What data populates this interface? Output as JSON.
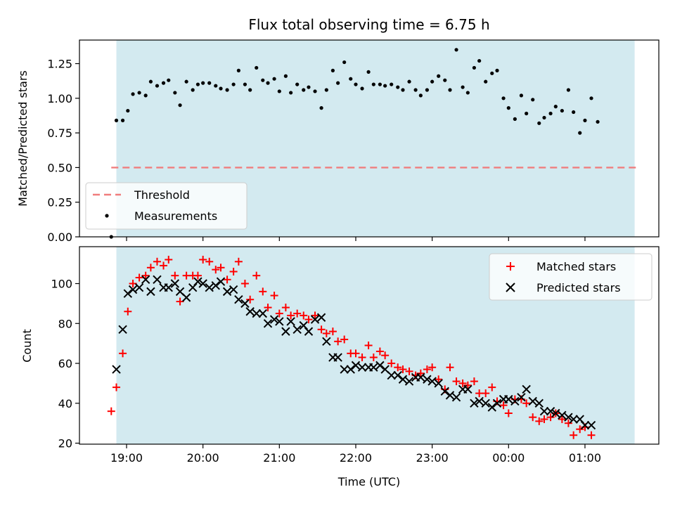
{
  "chart_data": [
    {
      "type": "scatter",
      "title": "Flux total observing time = 6.75 h",
      "xlabel": "",
      "ylabel": "Matched/Predicted stars",
      "ylim": [
        0,
        1.42
      ],
      "yticks": [
        "0.00",
        "0.25",
        "0.50",
        "0.75",
        "1.00",
        "1.25"
      ],
      "y_tick_values": [
        0,
        0.25,
        0.5,
        0.75,
        1.0,
        1.25
      ],
      "legend": {
        "placement": "lower-left",
        "entries": [
          "Threshold",
          "Measurements"
        ]
      },
      "threshold": {
        "name": "Threshold",
        "value": 0.5,
        "color": "#f07d7d",
        "style": "dashed",
        "x_range": [
          "18:48",
          "01:43"
        ]
      },
      "series": [
        {
          "name": "Measurements",
          "color": "#000000",
          "marker": "dot",
          "points": [
            [
              "18:48",
              0.0
            ],
            [
              "18:52",
              0.84
            ],
            [
              "18:57",
              0.84
            ],
            [
              "19:01",
              0.91
            ],
            [
              "19:05",
              1.03
            ],
            [
              "19:10",
              1.04
            ],
            [
              "19:15",
              1.02
            ],
            [
              "19:19",
              1.12
            ],
            [
              "19:24",
              1.09
            ],
            [
              "19:29",
              1.11
            ],
            [
              "19:33",
              1.13
            ],
            [
              "19:38",
              1.04
            ],
            [
              "19:42",
              0.95
            ],
            [
              "19:47",
              1.12
            ],
            [
              "19:52",
              1.06
            ],
            [
              "19:56",
              1.1
            ],
            [
              "20:00",
              1.11
            ],
            [
              "20:05",
              1.11
            ],
            [
              "20:10",
              1.09
            ],
            [
              "20:14",
              1.07
            ],
            [
              "20:19",
              1.06
            ],
            [
              "20:24",
              1.1
            ],
            [
              "20:28",
              1.2
            ],
            [
              "20:33",
              1.1
            ],
            [
              "20:37",
              1.06
            ],
            [
              "20:42",
              1.22
            ],
            [
              "20:47",
              1.13
            ],
            [
              "20:51",
              1.11
            ],
            [
              "20:56",
              1.14
            ],
            [
              "21:00",
              1.05
            ],
            [
              "21:05",
              1.16
            ],
            [
              "21:09",
              1.04
            ],
            [
              "21:14",
              1.1
            ],
            [
              "21:19",
              1.06
            ],
            [
              "21:23",
              1.08
            ],
            [
              "21:28",
              1.05
            ],
            [
              "21:33",
              0.93
            ],
            [
              "21:37",
              1.06
            ],
            [
              "21:42",
              1.2
            ],
            [
              "21:46",
              1.11
            ],
            [
              "21:51",
              1.26
            ],
            [
              "21:56",
              1.14
            ],
            [
              "22:00",
              1.1
            ],
            [
              "22:05",
              1.07
            ],
            [
              "22:10",
              1.19
            ],
            [
              "22:14",
              1.1
            ],
            [
              "22:19",
              1.1
            ],
            [
              "22:23",
              1.09
            ],
            [
              "22:28",
              1.1
            ],
            [
              "22:33",
              1.08
            ],
            [
              "22:37",
              1.06
            ],
            [
              "22:42",
              1.12
            ],
            [
              "22:47",
              1.06
            ],
            [
              "22:51",
              1.02
            ],
            [
              "22:56",
              1.06
            ],
            [
              "23:00",
              1.12
            ],
            [
              "23:05",
              1.16
            ],
            [
              "23:10",
              1.13
            ],
            [
              "23:14",
              1.06
            ],
            [
              "23:19",
              1.35
            ],
            [
              "23:24",
              1.08
            ],
            [
              "23:28",
              1.04
            ],
            [
              "23:33",
              1.22
            ],
            [
              "23:37",
              1.27
            ],
            [
              "23:42",
              1.12
            ],
            [
              "23:47",
              1.18
            ],
            [
              "23:51",
              1.2
            ],
            [
              "23:56",
              1.0
            ],
            [
              "00:00",
              0.93
            ],
            [
              "00:05",
              0.85
            ],
            [
              "00:10",
              1.02
            ],
            [
              "00:14",
              0.89
            ],
            [
              "00:19",
              0.99
            ],
            [
              "00:24",
              0.82
            ],
            [
              "00:28",
              0.86
            ],
            [
              "00:33",
              0.89
            ],
            [
              "00:37",
              0.94
            ],
            [
              "00:42",
              0.91
            ],
            [
              "00:47",
              1.06
            ],
            [
              "00:51",
              0.9
            ],
            [
              "00:56",
              0.75
            ],
            [
              "01:00",
              0.84
            ],
            [
              "01:05",
              1.0
            ],
            [
              "01:10",
              0.83
            ]
          ]
        }
      ]
    },
    {
      "type": "scatter",
      "title": "",
      "xlabel": "Time (UTC)",
      "ylabel": "Count",
      "ylim": [
        19.5,
        118.5
      ],
      "yticks": [
        "20",
        "40",
        "60",
        "80",
        "100"
      ],
      "y_tick_values": [
        20,
        40,
        60,
        80,
        100
      ],
      "xticks": [
        "19:00",
        "20:00",
        "21:00",
        "22:00",
        "23:00",
        "00:00",
        "01:00"
      ],
      "x_range": [
        "18:23",
        "01:58"
      ],
      "shaded_span": [
        "18:52",
        "01:39"
      ],
      "shade_color": "#d3eaf0",
      "legend": {
        "placement": "top-right",
        "entries": [
          "Matched stars",
          "Predicted stars"
        ]
      },
      "series": [
        {
          "name": "Matched stars",
          "color": "#ff0000",
          "marker": "plus",
          "points": [
            [
              "18:48",
              36
            ],
            [
              "18:52",
              48
            ],
            [
              "18:57",
              65
            ],
            [
              "19:01",
              86
            ],
            [
              "19:05",
              100
            ],
            [
              "19:10",
              103
            ],
            [
              "19:15",
              104
            ],
            [
              "19:19",
              108
            ],
            [
              "19:24",
              111
            ],
            [
              "19:29",
              109
            ],
            [
              "19:33",
              112
            ],
            [
              "19:38",
              104
            ],
            [
              "19:42",
              91
            ],
            [
              "19:47",
              104
            ],
            [
              "19:52",
              104
            ],
            [
              "19:56",
              104
            ],
            [
              "20:00",
              112
            ],
            [
              "20:05",
              111
            ],
            [
              "20:10",
              107
            ],
            [
              "20:14",
              108
            ],
            [
              "20:19",
              102
            ],
            [
              "20:24",
              106
            ],
            [
              "20:28",
              111
            ],
            [
              "20:33",
              100
            ],
            [
              "20:37",
              92
            ],
            [
              "20:42",
              104
            ],
            [
              "20:47",
              96
            ],
            [
              "20:51",
              88
            ],
            [
              "20:56",
              94
            ],
            [
              "21:00",
              85
            ],
            [
              "21:05",
              88
            ],
            [
              "21:09",
              84
            ],
            [
              "21:14",
              85
            ],
            [
              "21:19",
              84
            ],
            [
              "21:23",
              82
            ],
            [
              "21:28",
              84
            ],
            [
              "21:33",
              77
            ],
            [
              "21:37",
              75
            ],
            [
              "21:42",
              76
            ],
            [
              "21:46",
              71
            ],
            [
              "21:51",
              72
            ],
            [
              "21:56",
              65
            ],
            [
              "22:00",
              65
            ],
            [
              "22:05",
              63
            ],
            [
              "22:10",
              69
            ],
            [
              "22:14",
              63
            ],
            [
              "22:19",
              66
            ],
            [
              "22:23",
              64
            ],
            [
              "22:28",
              60
            ],
            [
              "22:33",
              58
            ],
            [
              "22:37",
              57
            ],
            [
              "22:42",
              56
            ],
            [
              "22:47",
              54
            ],
            [
              "22:51",
              55
            ],
            [
              "22:56",
              57
            ],
            [
              "23:00",
              58
            ],
            [
              "23:05",
              52
            ],
            [
              "23:10",
              47
            ],
            [
              "23:14",
              58
            ],
            [
              "23:19",
              51
            ],
            [
              "23:24",
              50
            ],
            [
              "23:28",
              49
            ],
            [
              "23:33",
              51
            ],
            [
              "23:37",
              45
            ],
            [
              "23:42",
              45
            ],
            [
              "23:47",
              48
            ],
            [
              "23:51",
              41
            ],
            [
              "23:56",
              39
            ],
            [
              "00:00",
              35
            ],
            [
              "00:05",
              42
            ],
            [
              "00:10",
              42
            ],
            [
              "00:14",
              40
            ],
            [
              "00:19",
              33
            ],
            [
              "00:24",
              31
            ],
            [
              "00:28",
              32
            ],
            [
              "00:33",
              33
            ],
            [
              "00:37",
              35
            ],
            [
              "00:42",
              32
            ],
            [
              "00:47",
              30
            ],
            [
              "00:51",
              24
            ],
            [
              "00:56",
              27
            ],
            [
              "01:00",
              28
            ],
            [
              "01:05",
              24
            ]
          ]
        },
        {
          "name": "Predicted stars",
          "color": "#000000",
          "marker": "x",
          "points": [
            [
              "18:52",
              57
            ],
            [
              "18:57",
              77
            ],
            [
              "19:01",
              95
            ],
            [
              "19:05",
              97
            ],
            [
              "19:10",
              98
            ],
            [
              "19:15",
              102
            ],
            [
              "19:19",
              96
            ],
            [
              "19:24",
              102
            ],
            [
              "19:29",
              98
            ],
            [
              "19:33",
              98
            ],
            [
              "19:38",
              100
            ],
            [
              "19:42",
              96
            ],
            [
              "19:47",
              93
            ],
            [
              "19:52",
              98
            ],
            [
              "19:56",
              101
            ],
            [
              "20:00",
              100
            ],
            [
              "20:05",
              98
            ],
            [
              "20:10",
              99
            ],
            [
              "20:14",
              101
            ],
            [
              "20:19",
              96
            ],
            [
              "20:24",
              97
            ],
            [
              "20:28",
              92
            ],
            [
              "20:33",
              90
            ],
            [
              "20:37",
              86
            ],
            [
              "20:42",
              85
            ],
            [
              "20:47",
              85
            ],
            [
              "20:51",
              80
            ],
            [
              "20:56",
              82
            ],
            [
              "21:00",
              81
            ],
            [
              "21:05",
              76
            ],
            [
              "21:09",
              81
            ],
            [
              "21:14",
              77
            ],
            [
              "21:19",
              79
            ],
            [
              "21:23",
              76
            ],
            [
              "21:28",
              82
            ],
            [
              "21:33",
              83
            ],
            [
              "21:37",
              71
            ],
            [
              "21:42",
              63
            ],
            [
              "21:46",
              63
            ],
            [
              "21:51",
              57
            ],
            [
              "21:56",
              57
            ],
            [
              "22:00",
              59
            ],
            [
              "22:05",
              58
            ],
            [
              "22:10",
              58
            ],
            [
              "22:14",
              58
            ],
            [
              "22:19",
              59
            ],
            [
              "22:23",
              57
            ],
            [
              "22:28",
              54
            ],
            [
              "22:33",
              54
            ],
            [
              "22:37",
              52
            ],
            [
              "22:42",
              51
            ],
            [
              "22:47",
              53
            ],
            [
              "22:51",
              53
            ],
            [
              "22:56",
              52
            ],
            [
              "23:00",
              51
            ],
            [
              "23:05",
              50
            ],
            [
              "23:10",
              46
            ],
            [
              "23:14",
              44
            ],
            [
              "23:19",
              43
            ],
            [
              "23:24",
              47
            ],
            [
              "23:28",
              47
            ],
            [
              "23:33",
              40
            ],
            [
              "23:37",
              41
            ],
            [
              "23:42",
              40
            ],
            [
              "23:47",
              38
            ],
            [
              "23:51",
              40
            ],
            [
              "23:56",
              42
            ],
            [
              "00:00",
              42
            ],
            [
              "00:05",
              41
            ],
            [
              "00:10",
              43
            ],
            [
              "00:14",
              47
            ],
            [
              "00:19",
              41
            ],
            [
              "00:24",
              40
            ],
            [
              "00:28",
              36
            ],
            [
              "00:33",
              36
            ],
            [
              "00:37",
              35
            ],
            [
              "00:42",
              34
            ],
            [
              "00:47",
              33
            ],
            [
              "00:51",
              32
            ],
            [
              "00:56",
              32
            ],
            [
              "01:00",
              29
            ],
            [
              "01:05",
              29
            ]
          ]
        }
      ]
    }
  ]
}
